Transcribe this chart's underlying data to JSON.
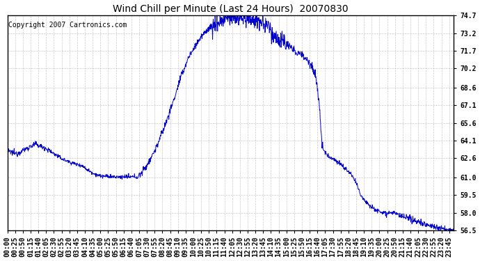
{
  "title": "Wind Chill per Minute (Last 24 Hours)  20070830",
  "copyright": "Copyright 2007 Cartronics.com",
  "line_color": "#0000cc",
  "background_color": "#ffffff",
  "grid_color": "#bbbbbb",
  "ylim": [
    56.5,
    74.7
  ],
  "yticks": [
    56.5,
    58.0,
    59.5,
    61.0,
    62.6,
    64.1,
    65.6,
    67.1,
    68.6,
    70.2,
    71.7,
    73.2,
    74.7
  ],
  "xtick_step_min": 25,
  "title_fontsize": 10,
  "tick_fontsize": 7,
  "copyright_fontsize": 7
}
